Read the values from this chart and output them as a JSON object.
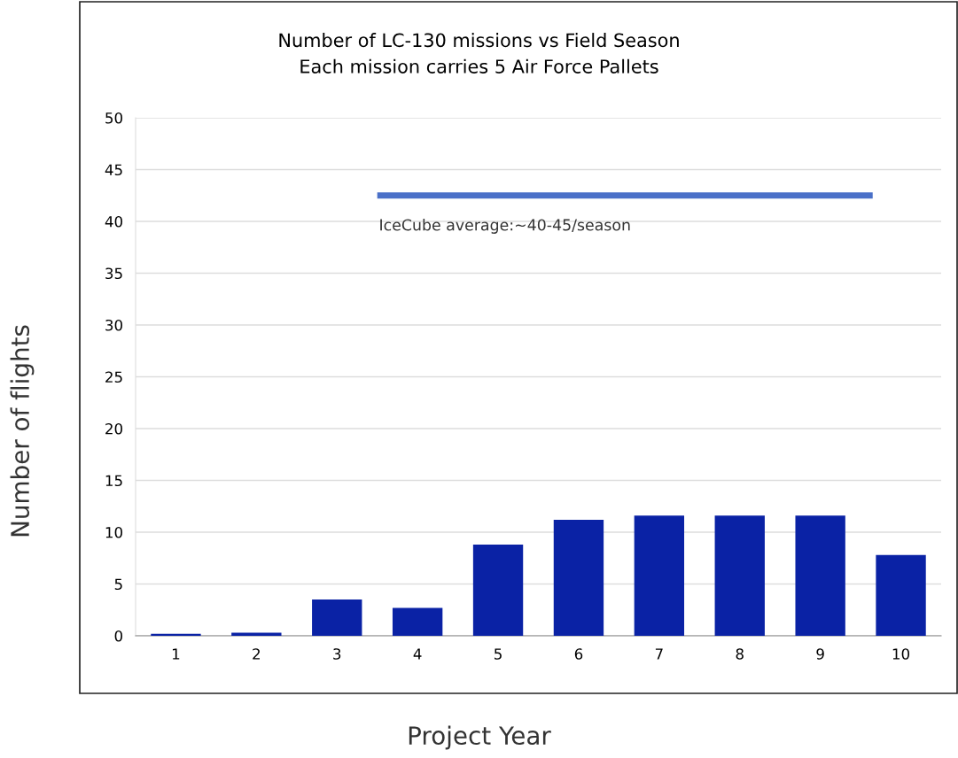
{
  "chart_data": {
    "type": "bar",
    "title": "Number of LC-130 missions vs Field Season\nEach mission carries 5 Air Force Pallets",
    "xlabel": "Project Year",
    "ylabel": "Number of flights",
    "x": [
      1,
      2,
      3,
      4,
      5,
      6,
      7,
      8,
      9,
      10
    ],
    "xlim": [
      0.5,
      10.5
    ],
    "xticks": [
      1,
      2,
      3,
      4,
      5,
      6,
      7,
      8,
      9,
      10
    ],
    "ylim": [
      0,
      50
    ],
    "yticks": [
      0,
      5,
      10,
      15,
      20,
      25,
      30,
      35,
      40,
      45,
      50
    ],
    "grid": "y",
    "series": [
      {
        "color": "#0a22a5",
        "values": [
          0.2,
          0.3,
          3.5,
          2.7,
          8.8,
          11.2,
          11.6,
          11.6,
          11.6,
          7.8
        ]
      },
      {
        "type": "line",
        "color": "#4a70c8",
        "x": [
          3.5,
          9.65
        ],
        "values": [
          42.5,
          42.5
        ]
      }
    ],
    "annotations": [
      "IceCube average:~40-45/season"
    ]
  }
}
